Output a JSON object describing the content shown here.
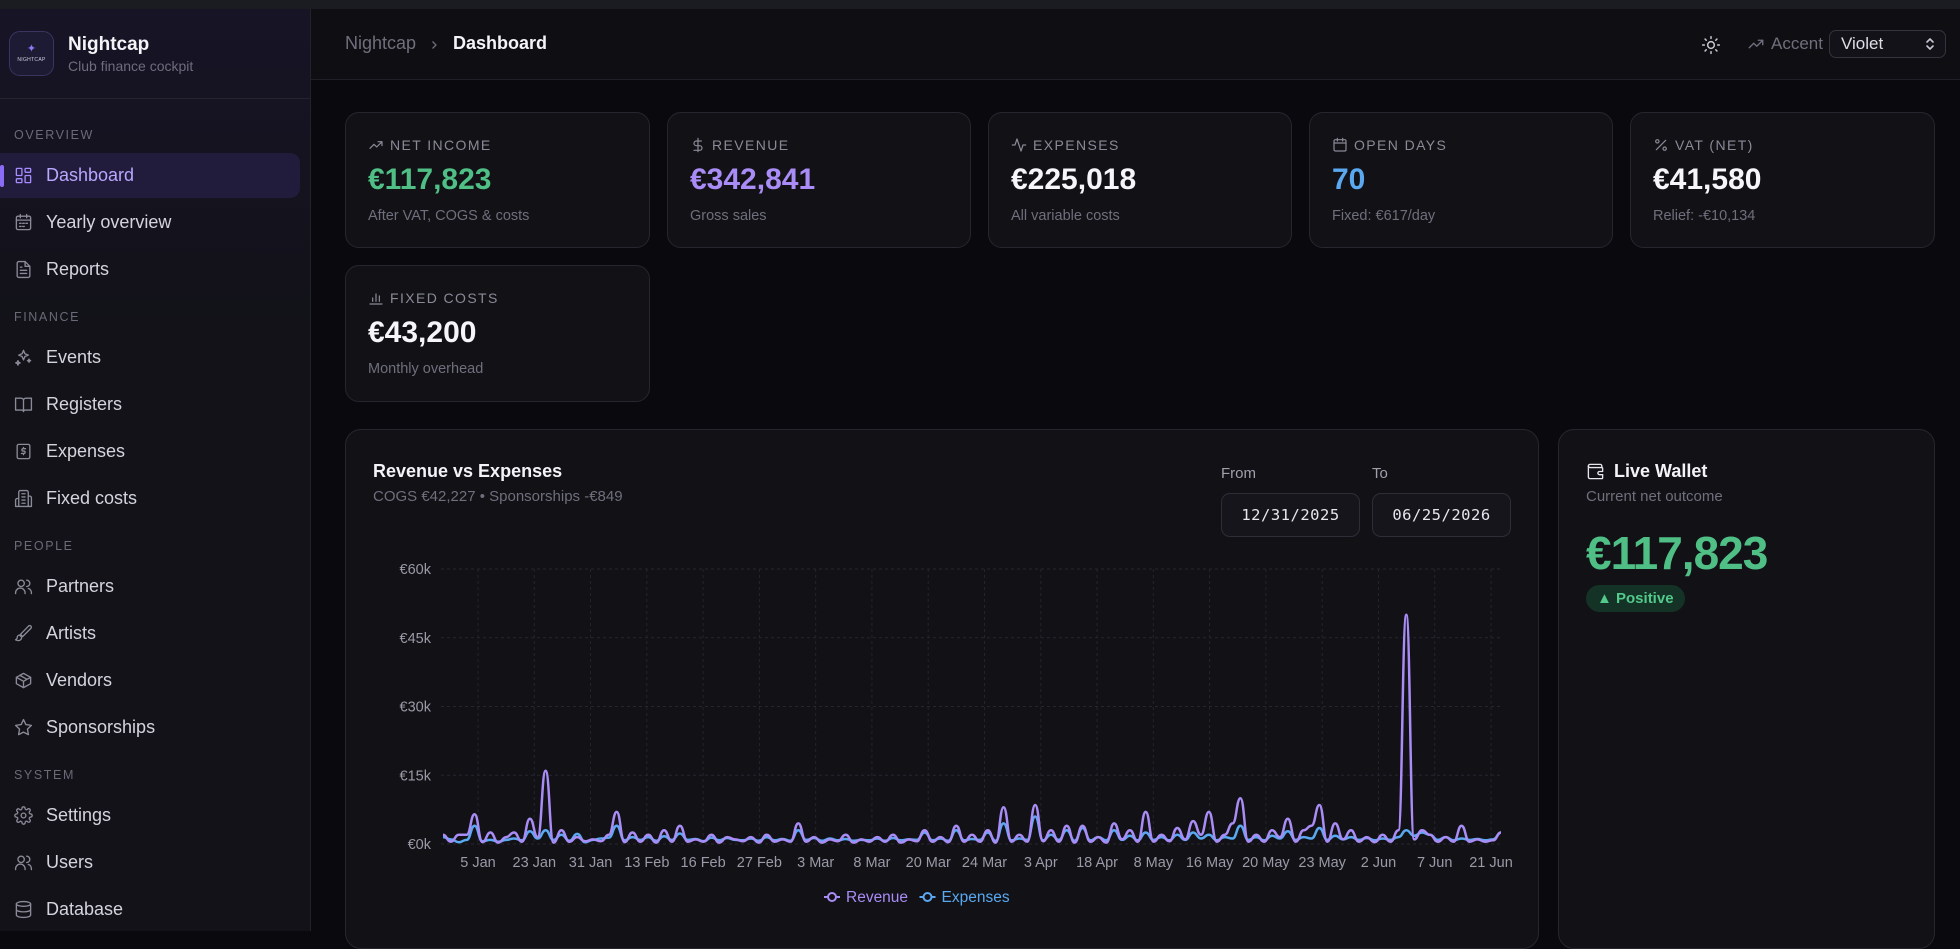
{
  "brand": {
    "logo_line1": "✦",
    "logo_line2": "NIGHTCAP",
    "name": "Nightcap",
    "subtitle": "Club finance cockpit"
  },
  "sidebar": {
    "sections": {
      "overview": "OVERVIEW",
      "finance": "FINANCE",
      "people": "PEOPLE",
      "system": "SYSTEM"
    },
    "items": [
      {
        "label": "Dashboard",
        "icon": "dashboard-icon",
        "active": true
      },
      {
        "label": "Yearly overview",
        "icon": "calendar-icon"
      },
      {
        "label": "Reports",
        "icon": "file-text-icon"
      },
      {
        "label": "Events",
        "icon": "sparkles-icon"
      },
      {
        "label": "Registers",
        "icon": "book-open-icon"
      },
      {
        "label": "Expenses",
        "icon": "receipt-icon"
      },
      {
        "label": "Fixed costs",
        "icon": "building-icon"
      },
      {
        "label": "Partners",
        "icon": "users-icon"
      },
      {
        "label": "Artists",
        "icon": "brush-icon"
      },
      {
        "label": "Vendors",
        "icon": "package-icon"
      },
      {
        "label": "Sponsorships",
        "icon": "star-icon"
      },
      {
        "label": "Settings",
        "icon": "gear-icon"
      },
      {
        "label": "Users",
        "icon": "users-icon"
      },
      {
        "label": "Database",
        "icon": "database-icon"
      }
    ]
  },
  "header": {
    "breadcrumb": [
      "Nightcap",
      "Dashboard"
    ],
    "accent_label": "Accent",
    "accent_value": "Violet"
  },
  "kpis": [
    {
      "label": "NET INCOME",
      "value": "€117,823",
      "sub": "After VAT, COGS & costs",
      "icon": "trending-up-icon",
      "color": "#4fbf86"
    },
    {
      "label": "REVENUE",
      "value": "€342,841",
      "sub": "Gross sales",
      "icon": "dollar-icon",
      "color": "#a98cf5"
    },
    {
      "label": "EXPENSES",
      "value": "€225,018",
      "sub": "All variable costs",
      "icon": "activity-icon",
      "color": "#f6f6fa"
    },
    {
      "label": "OPEN DAYS",
      "value": "70",
      "sub": "Fixed: €617/day",
      "icon": "calendar-icon",
      "color": "#5aa9f0"
    },
    {
      "label": "VAT (NET)",
      "value": "€41,580",
      "sub": "Relief: -€10,134",
      "icon": "percent-icon",
      "color": "#f6f6fa"
    },
    {
      "label": "FIXED COSTS",
      "value": "€43,200",
      "sub": "Monthly overhead",
      "icon": "bar-chart-icon",
      "color": "#f6f6fa"
    }
  ],
  "chart_panel": {
    "title": "Revenue vs Expenses",
    "subtitle": "COGS €42,227 • Sponsorships -€849",
    "from_label": "From",
    "from_value": "12/31/2025",
    "to_label": "To",
    "to_value": "06/25/2026"
  },
  "wallet": {
    "title": "Live Wallet",
    "subtitle": "Current net outcome",
    "value": "€117,823",
    "badge": "▲ Positive"
  },
  "chart_data": {
    "type": "line",
    "y_ticks": [
      "€0k",
      "€15k",
      "€30k",
      "€45k",
      "€60k"
    ],
    "ylim": [
      0,
      60000
    ],
    "x_tick_labels": [
      "5 Jan",
      "23 Jan",
      "31 Jan",
      "13 Feb",
      "16 Feb",
      "27 Feb",
      "3 Mar",
      "8 Mar",
      "20 Mar",
      "24 Mar",
      "3 Apr",
      "18 Apr",
      "8 May",
      "16 May",
      "20 May",
      "23 May",
      "2 Jun",
      "7 Jun",
      "21 Jun"
    ],
    "grid": true,
    "legend_position": "bottom",
    "series": [
      {
        "name": "Revenue",
        "color": "#a98cf5",
        "values": [
          2000,
          500,
          2000,
          2000,
          6500,
          400,
          2500,
          300,
          1500,
          2500,
          500,
          5500,
          1500,
          16000,
          300,
          3000,
          500,
          1500,
          600,
          1000,
          600,
          2000,
          7000,
          400,
          2500,
          500,
          2000,
          300,
          3000,
          500,
          4000,
          500,
          1000,
          500,
          2000,
          300,
          1500,
          1000,
          600,
          1500,
          300,
          2000,
          500,
          1000,
          500,
          4500,
          500,
          1500,
          300,
          1000,
          600,
          2000,
          300,
          1000,
          500,
          1500,
          500,
          2000,
          300,
          1000,
          600,
          3000,
          500,
          1500,
          400,
          4000,
          500,
          2000,
          500,
          3000,
          300,
          8000,
          500,
          2000,
          500,
          8500,
          600,
          3000,
          500,
          4000,
          300,
          4000,
          500,
          1500,
          300,
          4500,
          1000,
          3000,
          500,
          7000,
          500,
          2000,
          600,
          3500,
          1000,
          5000,
          2000,
          7000,
          500,
          2000,
          4500,
          10000,
          500,
          2000,
          500,
          3000,
          1500,
          5500,
          500,
          3000,
          4000,
          8500,
          500,
          4500,
          1000,
          3000,
          500,
          1500,
          400,
          2000,
          500,
          3000,
          50000,
          1000,
          3000,
          2000,
          500,
          1500,
          500,
          4000,
          500,
          1000,
          500,
          800,
          2500
        ]
      },
      {
        "name": "Expenses",
        "color": "#5aa9f0",
        "values": [
          1500,
          1000,
          400,
          900,
          4000,
          600,
          900,
          500,
          900,
          1200,
          800,
          2800,
          1200,
          3000,
          900,
          2000,
          700,
          2200,
          400,
          900,
          1200,
          1400,
          4000,
          800,
          1500,
          900,
          1500,
          700,
          1700,
          900,
          2300,
          900,
          1100,
          600,
          1400,
          800,
          1300,
          900,
          800,
          1200,
          700,
          1500,
          800,
          1100,
          700,
          3000,
          900,
          1300,
          700,
          1200,
          800,
          1100,
          700,
          900,
          800,
          1200,
          700,
          1300,
          800,
          1000,
          900,
          2500,
          800,
          1200,
          700,
          3000,
          800,
          1100,
          900,
          2500,
          700,
          4500,
          800,
          1200,
          900,
          6000,
          800,
          2000,
          900,
          3000,
          700,
          3500,
          800,
          1500,
          800,
          3000,
          900,
          1800,
          800,
          2500,
          900,
          1500,
          800,
          2000,
          900,
          2500,
          1200,
          2000,
          800,
          1500,
          1200,
          4000,
          900,
          1500,
          800,
          1800,
          1200,
          2800,
          900,
          1500,
          1200,
          3500,
          900,
          1800,
          1000,
          1500,
          900,
          1300,
          800,
          1200,
          900,
          1500,
          3000,
          1800,
          2500,
          2000,
          900,
          1500,
          800,
          1200,
          900,
          1100,
          800,
          1000,
          2500
        ]
      }
    ]
  }
}
